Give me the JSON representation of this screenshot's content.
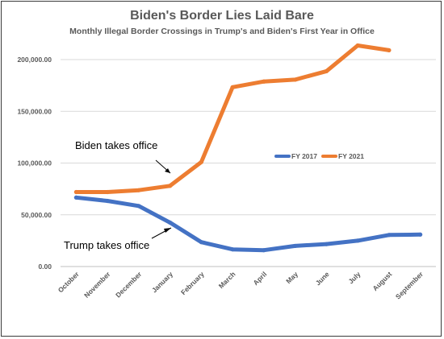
{
  "chart_data": {
    "type": "line",
    "title": "Biden's Border Lies Laid Bare",
    "subtitle": "Monthly Illegal Border Crossings in Trump's and Biden's First Year in Office",
    "categories": [
      "October",
      "November",
      "December",
      "January",
      "February",
      "March",
      "April",
      "May",
      "June",
      "July",
      "August",
      "September"
    ],
    "y_ticks": [
      "0.00",
      "50,000.00",
      "100,000.00",
      "150,000.00",
      "200,000.00"
    ],
    "ylim": [
      0,
      225000
    ],
    "grid": true,
    "legend": "center-right",
    "series": [
      {
        "name": "FY 2017",
        "color": "#4472c4",
        "values": [
          66700,
          63400,
          58500,
          42500,
          23600,
          16600,
          15800,
          19900,
          21700,
          25000,
          30500,
          30900
        ]
      },
      {
        "name": "FY 2021",
        "color": "#ed7d31",
        "values": [
          72000,
          72000,
          73800,
          78000,
          101000,
          173300,
          178800,
          180600,
          188800,
          213600,
          209000,
          null
        ]
      }
    ],
    "annotations": [
      {
        "text": "Biden takes office"
      },
      {
        "text": "Trump takes office"
      }
    ]
  }
}
